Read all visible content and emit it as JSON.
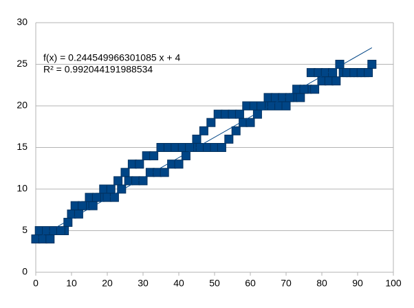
{
  "chart_data": {
    "type": "scatter",
    "series": [
      {
        "name": null,
        "color": "#004586",
        "x": [
          0,
          2,
          4,
          6,
          8,
          10,
          12,
          14,
          16,
          18,
          20,
          22,
          24,
          26,
          28,
          30,
          32,
          34,
          36,
          38,
          40,
          42,
          44,
          46,
          48,
          50,
          52,
          54,
          56,
          58,
          60,
          62,
          64,
          66,
          68,
          70,
          72,
          74,
          76,
          78,
          80,
          82,
          84,
          86,
          88,
          90,
          92,
          94,
          1,
          3,
          5,
          7,
          9,
          11,
          13,
          15,
          17,
          19,
          21,
          23,
          25,
          27,
          29,
          31,
          33,
          35,
          37,
          39,
          41,
          43,
          45,
          47,
          49,
          51,
          53,
          55,
          57,
          59,
          61,
          63,
          65,
          67,
          69,
          71,
          73,
          75,
          77,
          79,
          81,
          83,
          85,
          87,
          89,
          91,
          93
        ],
        "values": [
          4,
          4,
          4,
          5,
          5,
          7,
          7,
          8,
          8,
          9,
          9,
          9,
          10,
          11,
          11,
          11,
          12,
          12,
          12,
          13,
          13,
          14,
          15,
          15,
          15,
          15,
          15,
          16,
          17,
          18,
          18,
          19,
          20,
          20,
          20,
          20,
          21,
          21,
          22,
          22,
          23,
          23,
          23,
          24,
          24,
          24,
          24,
          25,
          5,
          5,
          5,
          5,
          6,
          8,
          8,
          9,
          9,
          10,
          10,
          11,
          12,
          13,
          13,
          14,
          14,
          15,
          15,
          15,
          15,
          15,
          16,
          17,
          18,
          19,
          19,
          19,
          19,
          20,
          20,
          20,
          21,
          21,
          21,
          21,
          22,
          22,
          24,
          24,
          24,
          24,
          25,
          24,
          24,
          24,
          24
        ]
      }
    ],
    "trendline": {
      "slope": 0.244549966301085,
      "intercept": 4,
      "color": "#004586",
      "equation": "f(x) = 0.244549966301085 x + 4",
      "r2": "R² = 0.992044191988534"
    },
    "xlim": [
      0,
      100
    ],
    "xticks": [
      0,
      10,
      20,
      30,
      40,
      50,
      60,
      70,
      80,
      90,
      100
    ],
    "ylim": [
      0,
      30
    ],
    "yticks": [
      0,
      5,
      10,
      15,
      20,
      25,
      30
    ],
    "grid": true
  }
}
